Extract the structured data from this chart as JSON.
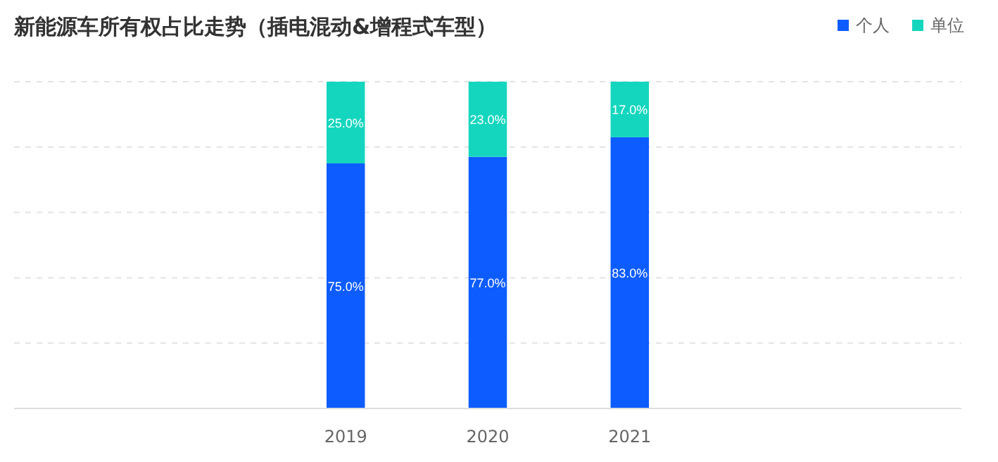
{
  "chart_data": {
    "type": "bar",
    "title": "新能源车所有权占比走势（插电混动&增程式车型）",
    "categories": [
      "2019",
      "2020",
      "2021"
    ],
    "series": [
      {
        "name": "个人",
        "color": "#0d5cff",
        "values": [
          75,
          77,
          83
        ],
        "value_labels": [
          "75.0%",
          "77.0%",
          "83.0%"
        ]
      },
      {
        "name": "单位",
        "color": "#14d6be",
        "values": [
          25,
          23,
          17
        ],
        "value_labels": [
          "25.0%",
          "23.0%",
          "17.0%"
        ]
      }
    ],
    "stacked": true,
    "tick_labels": "x",
    "grid": "y",
    "legend": "top right"
  }
}
